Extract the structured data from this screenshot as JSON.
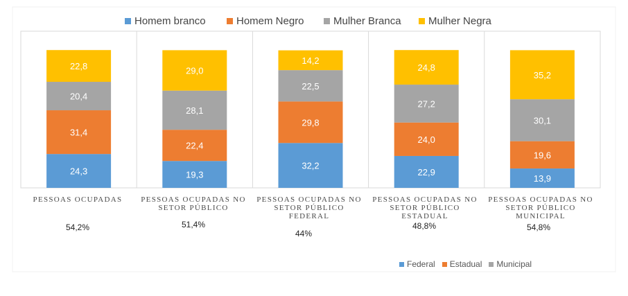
{
  "chart_data": {
    "type": "bar",
    "stacked": true,
    "categories": [
      "PESSOAS OCUPADAS",
      "PESSOAS OCUPADAS NO SETOR PÚBLICO",
      "PESSOAS OCUPADAS NO SETOR PÚBLICO FEDERAL",
      "PESSOAS OCUPADAS NO SETOR PÚBLICO ESTADUAL",
      "PESSOAS OCUPADAS NO SETOR PÚBLICO MUNICIPAL"
    ],
    "category_display": [
      "PESSOAS OCUPADAS",
      "PESSOAS OCUPADAS NO\nSETOR PÚBLICO",
      "PESSOAS OCUPADAS NO\nSETOR PÚBLICO\nFEDERAL",
      "PESSOAS OCUPADAS NO\nSETOR PÚBLICO\nESTADUAL",
      "PESSOAS OCUPADAS NO\nSETOR PÚBLICO\nMUNICIPAL"
    ],
    "category_percentages": [
      "54,2%",
      "51,4%",
      "44%",
      "48,8%",
      "54,8%"
    ],
    "series": [
      {
        "name": "Homem branco",
        "color": "#5B9BD5",
        "values": [
          24.3,
          19.3,
          32.2,
          22.9,
          13.9
        ],
        "labels": [
          "24,3",
          "19,3",
          "32,2",
          "22,9",
          "13,9"
        ]
      },
      {
        "name": "Homem Negro",
        "color": "#ED7D31",
        "values": [
          31.4,
          22.4,
          29.8,
          24.0,
          19.6
        ],
        "labels": [
          "31,4",
          "22,4",
          "29,8",
          "24,0",
          "19,6"
        ]
      },
      {
        "name": "Mulher Branca",
        "color": "#A5A5A5",
        "values": [
          20.4,
          28.1,
          22.5,
          27.2,
          30.1
        ],
        "labels": [
          "20,4",
          "28,1",
          "22,5",
          "27,2",
          "30,1"
        ]
      },
      {
        "name": "Mulher Negra",
        "color": "#FFC000",
        "values": [
          22.8,
          29.0,
          14.2,
          24.8,
          35.2
        ],
        "labels": [
          "22,8",
          "29,0",
          "14,2",
          "24,8",
          "35,2"
        ]
      }
    ],
    "ylim": [
      0,
      100
    ],
    "legend": "top",
    "grid": false,
    "title": "",
    "xlabel": "",
    "ylabel": ""
  },
  "bottom_legend": [
    {
      "label": "Federal",
      "color": "#5B9BD5"
    },
    {
      "label": "Estadual",
      "color": "#ED7D31"
    },
    {
      "label": "Municipal",
      "color": "#A5A5A5"
    }
  ]
}
